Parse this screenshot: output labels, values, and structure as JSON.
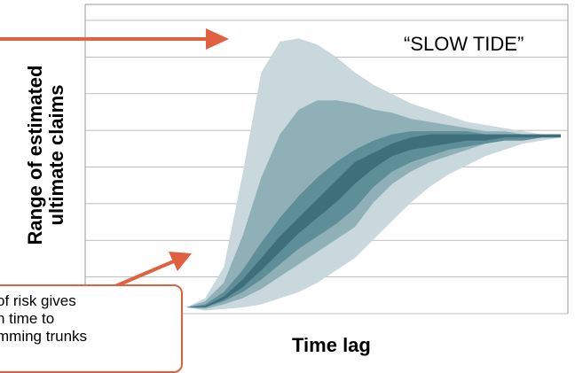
{
  "chart_data": {
    "type": "area",
    "title": "",
    "xlabel": "Time lag",
    "ylabel": "Range of estimated\nultimate claims",
    "grid": true,
    "annotations": [
      "“SLOW TIDE”"
    ],
    "bands": [
      {
        "level": "outer",
        "x": [
          0,
          0.05,
          0.1,
          0.15,
          0.2,
          0.25,
          0.3,
          0.35,
          0.4,
          0.45,
          0.5,
          0.55,
          0.6,
          0.65,
          0.7,
          0.75,
          0.8,
          0.85,
          0.9,
          0.95,
          1.0
        ],
        "upper": [
          0.02,
          0.05,
          0.15,
          0.45,
          0.78,
          0.88,
          0.89,
          0.87,
          0.83,
          0.78,
          0.74,
          0.71,
          0.68,
          0.66,
          0.64,
          0.62,
          0.61,
          0.6,
          0.59,
          0.58,
          0.58
        ],
        "lower": [
          0.02,
          0.01,
          0.015,
          0.02,
          0.03,
          0.05,
          0.07,
          0.1,
          0.14,
          0.18,
          0.24,
          0.3,
          0.36,
          0.41,
          0.45,
          0.48,
          0.51,
          0.53,
          0.55,
          0.56,
          0.57
        ]
      },
      {
        "level": "upper-middle",
        "x": [
          0,
          0.05,
          0.1,
          0.15,
          0.2,
          0.25,
          0.3,
          0.35,
          0.4,
          0.45,
          0.5,
          0.55,
          0.6,
          0.65,
          0.7,
          0.75,
          0.8,
          0.85,
          0.9,
          0.95,
          1.0
        ],
        "upper": [
          0.02,
          0.04,
          0.1,
          0.25,
          0.44,
          0.58,
          0.66,
          0.69,
          0.69,
          0.68,
          0.66,
          0.65,
          0.63,
          0.62,
          0.61,
          0.6,
          0.59,
          0.59,
          0.58,
          0.58,
          0.58
        ],
        "lower": [
          0.02,
          0.015,
          0.03,
          0.05,
          0.08,
          0.12,
          0.16,
          0.2,
          0.24,
          0.28,
          0.36,
          0.42,
          0.46,
          0.49,
          0.51,
          0.53,
          0.55,
          0.56,
          0.56,
          0.57,
          0.57
        ]
      },
      {
        "level": "middle",
        "x": [
          0,
          0.05,
          0.1,
          0.15,
          0.2,
          0.25,
          0.3,
          0.35,
          0.4,
          0.45,
          0.5,
          0.55,
          0.6,
          0.65,
          0.7,
          0.75,
          0.8,
          0.85,
          0.9,
          0.95,
          1.0
        ],
        "upper": [
          0.02,
          0.03,
          0.07,
          0.14,
          0.23,
          0.31,
          0.38,
          0.44,
          0.49,
          0.53,
          0.56,
          0.58,
          0.59,
          0.59,
          0.59,
          0.59,
          0.58,
          0.58,
          0.58,
          0.58,
          0.58
        ],
        "lower": [
          0.02,
          0.02,
          0.04,
          0.07,
          0.11,
          0.16,
          0.21,
          0.25,
          0.29,
          0.34,
          0.41,
          0.46,
          0.49,
          0.51,
          0.53,
          0.54,
          0.55,
          0.56,
          0.56,
          0.57,
          0.57
        ]
      },
      {
        "level": "inner",
        "x": [
          0,
          0.05,
          0.1,
          0.15,
          0.2,
          0.25,
          0.3,
          0.35,
          0.4,
          0.45,
          0.5,
          0.55,
          0.6,
          0.65,
          0.7,
          0.75,
          0.8,
          0.85,
          0.9,
          0.95,
          1.0
        ],
        "upper": [
          0.02,
          0.025,
          0.055,
          0.11,
          0.18,
          0.25,
          0.31,
          0.37,
          0.43,
          0.49,
          0.52,
          0.55,
          0.57,
          0.58,
          0.58,
          0.58,
          0.58,
          0.58,
          0.58,
          0.58,
          0.58
        ],
        "lower": [
          0.02,
          0.02,
          0.045,
          0.085,
          0.14,
          0.2,
          0.26,
          0.31,
          0.36,
          0.42,
          0.47,
          0.51,
          0.53,
          0.54,
          0.55,
          0.56,
          0.56,
          0.57,
          0.57,
          0.57,
          0.57
        ]
      }
    ],
    "colors": {
      "outer": "#c8d8dc",
      "upper-middle": "#8fb0b7",
      "middle": "#5e8e98",
      "inner": "#3f6f7b",
      "grid": "#aaaaaa",
      "arrow": "#e06040"
    },
    "ylim": [
      0,
      1
    ],
    "xlim": [
      0,
      1
    ]
  },
  "callout": {
    "lines": [
      "of risk gives",
      "h time to",
      "mming trunks"
    ]
  }
}
